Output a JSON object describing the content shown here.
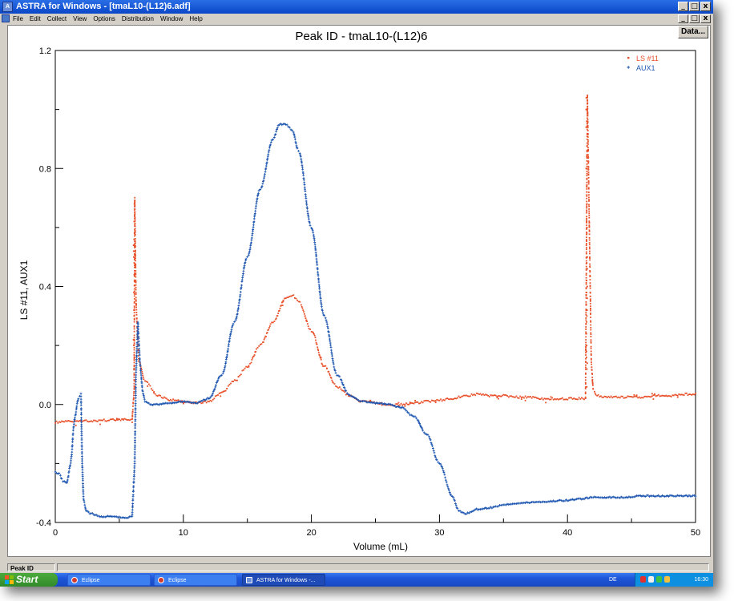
{
  "window": {
    "title": "ASTRA for Windows - [tmaL10-(L12)6.adf]",
    "controls": [
      "_",
      "̳",
      "x"
    ]
  },
  "menu": {
    "items": [
      "File",
      "Edit",
      "Collect",
      "View",
      "Options",
      "Distribution",
      "Window",
      "Help"
    ]
  },
  "toolbar": {
    "data_button": "Data..."
  },
  "status": {
    "panel_text": "Peak ID"
  },
  "taskbar": {
    "start_label": "Start",
    "items": [
      "Eclipse",
      "Eclipse",
      "ASTRA for Windows -..."
    ],
    "language": "DE",
    "clock": "16:30"
  },
  "colors": {
    "ls11": "#e8502a",
    "aux1": "#1c55b0",
    "titlebar": "#0a46c8",
    "taskbar": "#1d56d8",
    "start": "#308a2a"
  },
  "chart_data": {
    "type": "scatter",
    "title": "Peak ID - tmaL10-(L12)6",
    "xlabel": "Volume (mL)",
    "ylabel": "LS #11, AUX1",
    "xlim": [
      0,
      50
    ],
    "ylim": [
      -0.4,
      1.2
    ],
    "xticks": [
      0,
      10,
      20,
      30,
      40,
      50
    ],
    "yticks": [
      -0.4,
      0.0,
      0.4,
      0.8,
      1.2
    ],
    "ytick_labels": [
      "-0.4",
      "0.0",
      "0.4",
      "0.8",
      "1.2"
    ],
    "legend_position": "top-right",
    "series": [
      {
        "name": "LS #11",
        "color": "#e8502a",
        "marker": "dot",
        "x": [
          0,
          1,
          2,
          3,
          4,
          5,
          6.0,
          6.15,
          6.2,
          6.3,
          6.5,
          7,
          8,
          9,
          10,
          11,
          12,
          13,
          14,
          15,
          16,
          17,
          18,
          18.5,
          19,
          20,
          21,
          22,
          23,
          24,
          25,
          26,
          27,
          28,
          29,
          30,
          31,
          32,
          33,
          34,
          35,
          36,
          37,
          38,
          39,
          40,
          41,
          41.4,
          41.55,
          41.7,
          41.85,
          42,
          42.3,
          43,
          44,
          45,
          46,
          47,
          48,
          49,
          50
        ],
        "y": [
          -0.06,
          -0.058,
          -0.056,
          -0.055,
          -0.053,
          -0.052,
          -0.05,
          0.05,
          0.7,
          0.35,
          0.15,
          0.08,
          0.03,
          0.015,
          0.01,
          0.005,
          0.01,
          0.04,
          0.08,
          0.13,
          0.2,
          0.28,
          0.36,
          0.37,
          0.35,
          0.25,
          0.13,
          0.06,
          0.03,
          0.01,
          0.005,
          0.0,
          0.0,
          0.005,
          0.01,
          0.015,
          0.02,
          0.03,
          0.035,
          0.03,
          0.03,
          0.025,
          0.025,
          0.02,
          0.02,
          0.02,
          0.02,
          0.02,
          1.05,
          0.6,
          0.15,
          0.05,
          0.03,
          0.025,
          0.025,
          0.025,
          0.025,
          0.03,
          0.03,
          0.035,
          0.035
        ],
        "spikes": [
          {
            "x": 6.15,
            "y": [
              0.0,
              0.7
            ]
          },
          {
            "x": 41.5,
            "y": [
              0.02,
              1.05
            ]
          }
        ]
      },
      {
        "name": "AUX1",
        "color": "#1c55b0",
        "marker": "plus",
        "x": [
          0,
          0.3,
          0.6,
          0.9,
          1.2,
          1.5,
          1.8,
          2.0,
          2.1,
          2.2,
          2.4,
          2.8,
          3.5,
          4.5,
          5.5,
          6.0,
          6.2,
          6.3,
          6.45,
          6.6,
          6.8,
          7,
          7.5,
          8,
          9,
          10,
          11,
          12,
          13,
          14,
          15,
          16,
          17,
          17.5,
          18,
          18.5,
          19,
          20,
          21,
          22,
          23,
          24,
          25,
          26,
          27,
          28,
          29,
          30,
          31,
          31.5,
          32,
          33,
          34,
          35,
          36,
          38,
          40,
          41,
          42,
          44,
          46,
          48,
          50
        ],
        "y": [
          -0.23,
          -0.235,
          -0.26,
          -0.265,
          -0.2,
          -0.05,
          0.02,
          0.035,
          -0.2,
          -0.32,
          -0.36,
          -0.37,
          -0.38,
          -0.38,
          -0.385,
          -0.38,
          -0.2,
          0.1,
          0.28,
          0.15,
          0.05,
          0.01,
          0.0,
          0.0,
          0.005,
          0.01,
          0.005,
          0.02,
          0.1,
          0.28,
          0.5,
          0.73,
          0.9,
          0.95,
          0.95,
          0.93,
          0.86,
          0.6,
          0.3,
          0.1,
          0.03,
          0.01,
          0.005,
          0.0,
          -0.01,
          -0.04,
          -0.1,
          -0.2,
          -0.31,
          -0.36,
          -0.37,
          -0.355,
          -0.35,
          -0.34,
          -0.335,
          -0.33,
          -0.325,
          -0.32,
          -0.315,
          -0.315,
          -0.31,
          -0.31,
          -0.31
        ]
      }
    ]
  }
}
